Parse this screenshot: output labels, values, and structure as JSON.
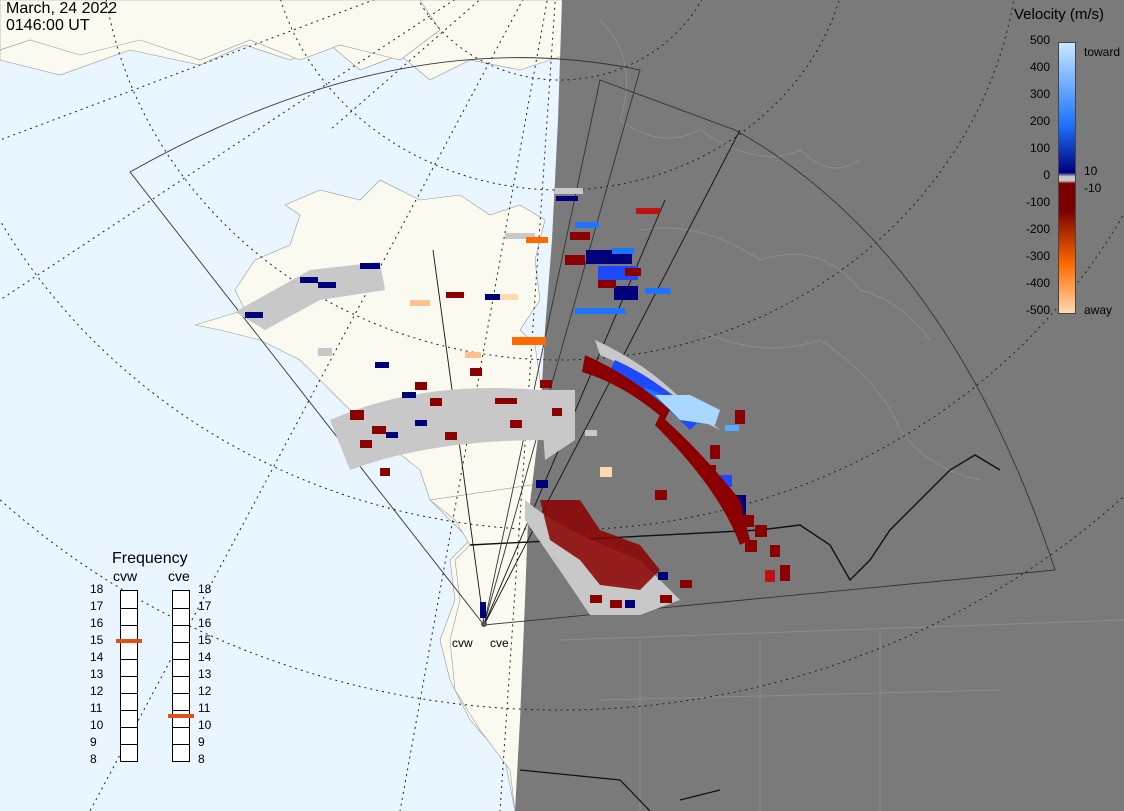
{
  "header": {
    "date": "March, 24 2022",
    "time": "0146:00 UT"
  },
  "velocity_scale": {
    "title": "Velocity (m/s)",
    "ticks": [
      "500",
      "400",
      "300",
      "200",
      "100",
      "0",
      "-100",
      "-200",
      "-300",
      "-400",
      "-500"
    ],
    "near_zero_labels": [
      "10",
      "-10"
    ],
    "toward_label": "toward",
    "away_label": "away",
    "colors": {
      "toward_light": "#c8e8ff",
      "toward_mid": "#1e73ff",
      "toward_dark": "#00007a",
      "zero": "#c8c8c8",
      "away_dark": "#7a0000",
      "away_mid": "#ff6a00",
      "away_light": "#ffd9b0"
    }
  },
  "frequency_panel": {
    "title": "Frequency",
    "radars": [
      "cvw",
      "cve"
    ],
    "levels": [
      "18",
      "17",
      "16",
      "15",
      "14",
      "13",
      "12",
      "11",
      "10",
      "9",
      "8"
    ],
    "cvw_marker_mhz": 15,
    "cve_marker_mhz": 10.6
  },
  "radar_site_labels": [
    "cvw",
    "cve"
  ],
  "map_colors": {
    "ocean": "#e9f5ff",
    "land": "#fafaf0",
    "night_overlay": "#7a7a7a",
    "ground_scatter": "#c8c8c8"
  }
}
